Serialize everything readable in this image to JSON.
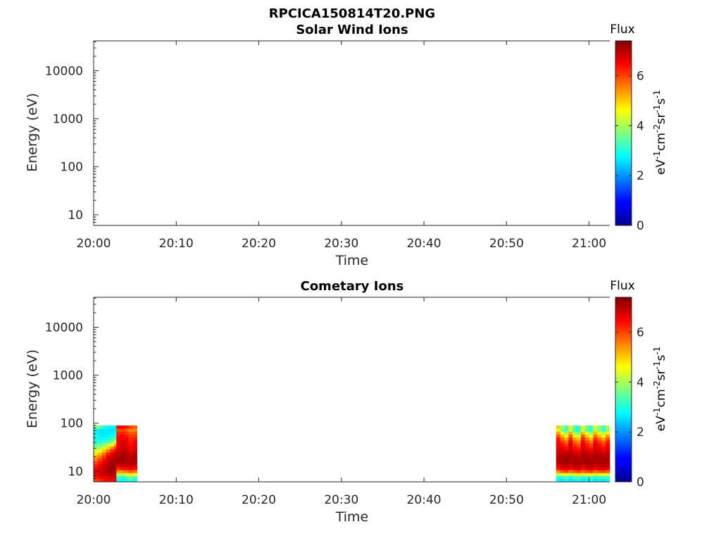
{
  "figure_title": "RPCICA150814T20.PNG",
  "chart_data": [
    {
      "type": "heatmap",
      "title": "Solar Wind Ions",
      "xlabel": "Time",
      "ylabel": "Energy (eV)",
      "x_ticks": [
        "20:00",
        "20:10",
        "20:20",
        "20:30",
        "20:40",
        "20:50",
        "21:00"
      ],
      "x_range_minutes": [
        0,
        62.5
      ],
      "y_scale": "log",
      "y_ticks": [
        {
          "value": 10,
          "label": "10"
        },
        {
          "value": 100,
          "label": "100"
        },
        {
          "value": 1000,
          "label": "1000"
        },
        {
          "value": 10000,
          "label": "10000"
        }
      ],
      "y_range": [
        6,
        42000
      ],
      "colorbar": {
        "title": "Flux",
        "label": "eV-1cm-2sr-1s-1",
        "range": [
          0,
          7.4
        ],
        "ticks": [
          0,
          2,
          4,
          6
        ],
        "colormap": "jet"
      },
      "cells": []
    },
    {
      "type": "heatmap",
      "title": "Cometary Ions",
      "xlabel": "Time",
      "ylabel": "Energy (eV)",
      "x_ticks": [
        "20:00",
        "20:10",
        "20:20",
        "20:30",
        "20:40",
        "20:50",
        "21:00"
      ],
      "x_range_minutes": [
        0,
        62.5
      ],
      "y_scale": "log",
      "y_ticks": [
        {
          "value": 10,
          "label": "10"
        },
        {
          "value": 100,
          "label": "100"
        },
        {
          "value": 1000,
          "label": "1000"
        },
        {
          "value": 10000,
          "label": "10000"
        }
      ],
      "y_range": [
        6,
        42000
      ],
      "colorbar": {
        "title": "Flux",
        "label": "eV-1cm-2sr-1s-1",
        "range": [
          0,
          7.4
        ],
        "ticks": [
          0,
          2,
          4,
          6
        ],
        "colormap": "jet"
      },
      "energy_bins": [
        6.5,
        7.5,
        8.6,
        9.9,
        11.4,
        13.2,
        15.2,
        17.5,
        20.2,
        23.3,
        26.8,
        30.9,
        35.6,
        41.0,
        47.3,
        54.5,
        62.8,
        72.4,
        83.4
      ],
      "blocks": [
        {
          "t_start_min": 0.0,
          "t_step_min": 0.5,
          "flux": [
            [
              6.0,
              6.2,
              6.4,
              6.5,
              6.5,
              6.6
            ],
            [
              6.3,
              6.5,
              6.6,
              6.7,
              6.8,
              6.8
            ],
            [
              6.5,
              6.7,
              6.8,
              7.0,
              7.0,
              6.9
            ],
            [
              6.6,
              6.8,
              7.0,
              7.1,
              7.1,
              7.0
            ],
            [
              6.5,
              6.7,
              6.9,
              7.1,
              7.2,
              7.1
            ],
            [
              6.3,
              6.6,
              6.9,
              7.0,
              7.2,
              7.2
            ],
            [
              6.0,
              6.3,
              6.7,
              6.9,
              7.1,
              7.1
            ],
            [
              5.6,
              6.0,
              6.4,
              6.8,
              7.0,
              7.1
            ],
            [
              5.2,
              5.6,
              6.1,
              6.6,
              6.9,
              7.0
            ],
            [
              4.8,
              5.1,
              5.6,
              6.2,
              6.6,
              6.9
            ],
            [
              4.3,
              4.6,
              5.0,
              5.6,
              6.2,
              6.6
            ],
            [
              3.8,
              4.0,
              4.4,
              4.9,
              5.5,
              6.1
            ],
            [
              3.4,
              3.5,
              3.7,
              4.1,
              4.6,
              5.3
            ],
            [
              3.1,
              3.1,
              3.2,
              3.4,
              3.8,
              4.4
            ],
            [
              2.9,
              2.8,
              2.9,
              3.0,
              3.2,
              3.5
            ],
            [
              2.9,
              2.7,
              2.6,
              2.7,
              2.8,
              3.0
            ],
            [
              2.8,
              2.6,
              2.6,
              2.6,
              2.7,
              2.8
            ],
            [
              2.7,
              2.6,
              2.6,
              2.6,
              2.6,
              2.6
            ],
            [
              3.8,
              3.6,
              3.0,
              2.8,
              2.7,
              2.6
            ]
          ]
        },
        {
          "t_start_min": 2.75,
          "t_step_min": 0.5,
          "flux": [
            [
              2.8,
              2.7,
              2.9,
              3.1,
              2.9
            ],
            [
              3.2,
              3.0,
              3.3,
              3.6,
              3.3
            ],
            [
              4.2,
              4.0,
              4.4,
              4.8,
              4.5
            ],
            [
              5.4,
              5.4,
              5.6,
              5.8,
              5.6
            ],
            [
              6.2,
              6.4,
              6.4,
              6.5,
              6.4
            ],
            [
              6.7,
              6.9,
              6.8,
              6.9,
              6.8
            ],
            [
              7.0,
              7.1,
              7.0,
              7.0,
              7.0
            ],
            [
              7.1,
              7.2,
              7.1,
              7.0,
              7.1
            ],
            [
              7.0,
              7.2,
              7.1,
              6.9,
              7.1
            ],
            [
              6.9,
              7.1,
              7.0,
              6.8,
              7.0
            ],
            [
              6.8,
              6.9,
              6.9,
              6.6,
              6.8
            ],
            [
              6.7,
              6.8,
              6.8,
              6.5,
              6.7
            ],
            [
              6.6,
              6.8,
              6.7,
              6.4,
              6.6
            ],
            [
              6.6,
              6.7,
              6.6,
              6.3,
              6.5
            ],
            [
              6.5,
              6.6,
              6.5,
              6.2,
              6.3
            ],
            [
              6.4,
              6.5,
              6.3,
              6.1,
              6.1
            ],
            [
              6.2,
              6.3,
              6.1,
              5.8,
              5.9
            ],
            [
              5.9,
              6.0,
              5.8,
              5.5,
              5.5
            ],
            [
              6.6,
              6.6,
              6.3,
              6.0,
              5.8
            ]
          ]
        },
        {
          "t_start_min": 56.0,
          "t_step_min": 0.5,
          "flux": [
            [
              2.7,
              2.6,
              2.8,
              2.6,
              2.7,
              2.8,
              2.6,
              2.7,
              2.8,
              2.6,
              2.7,
              2.6,
              2.8
            ],
            [
              3.0,
              3.1,
              3.3,
              3.0,
              3.2,
              3.4,
              3.1,
              3.2,
              3.3,
              3.0,
              3.1,
              3.2,
              3.1
            ],
            [
              4.0,
              4.3,
              4.6,
              4.1,
              4.4,
              4.8,
              4.2,
              4.5,
              4.7,
              4.2,
              4.4,
              4.5,
              4.3
            ],
            [
              5.4,
              5.8,
              6.0,
              5.6,
              5.9,
              6.1,
              5.7,
              6.0,
              6.1,
              5.7,
              5.9,
              6.0,
              5.8
            ],
            [
              6.3,
              6.6,
              6.7,
              6.5,
              6.7,
              6.8,
              6.5,
              6.7,
              6.8,
              6.5,
              6.7,
              6.7,
              6.6
            ],
            [
              6.7,
              6.9,
              7.0,
              6.8,
              7.0,
              7.0,
              6.8,
              7.0,
              7.0,
              6.8,
              6.9,
              7.0,
              6.9
            ],
            [
              6.9,
              7.1,
              7.1,
              7.0,
              7.1,
              7.1,
              7.0,
              7.1,
              7.1,
              7.0,
              7.1,
              7.1,
              7.0
            ],
            [
              7.0,
              7.1,
              7.2,
              7.1,
              7.1,
              7.0,
              7.1,
              7.2,
              7.1,
              7.1,
              7.1,
              7.1,
              7.1
            ],
            [
              7.0,
              7.1,
              7.1,
              7.1,
              7.0,
              6.9,
              7.1,
              7.1,
              7.0,
              7.1,
              7.1,
              7.0,
              7.0
            ],
            [
              6.9,
              7.0,
              6.9,
              7.0,
              6.8,
              6.7,
              7.0,
              6.9,
              6.8,
              7.0,
              6.9,
              6.8,
              6.9
            ],
            [
              6.8,
              6.8,
              6.7,
              6.9,
              6.6,
              6.5,
              6.9,
              6.7,
              6.6,
              6.9,
              6.8,
              6.6,
              6.8
            ],
            [
              6.7,
              6.6,
              6.4,
              6.8,
              6.4,
              6.2,
              6.8,
              6.5,
              6.3,
              6.8,
              6.6,
              6.4,
              6.7
            ],
            [
              6.6,
              6.4,
              6.1,
              6.7,
              6.1,
              5.9,
              6.7,
              6.3,
              6.0,
              6.7,
              6.4,
              6.1,
              6.5
            ],
            [
              6.5,
              6.1,
              5.7,
              6.5,
              5.8,
              5.5,
              6.5,
              6.0,
              5.6,
              6.5,
              6.1,
              5.8,
              6.3
            ],
            [
              6.3,
              5.7,
              5.2,
              6.2,
              5.3,
              5.0,
              6.2,
              5.6,
              5.1,
              6.2,
              5.7,
              5.3,
              5.9
            ],
            [
              5.9,
              5.2,
              4.6,
              5.8,
              4.7,
              4.3,
              5.8,
              5.0,
              4.5,
              5.7,
              5.1,
              4.7,
              5.4
            ],
            [
              5.3,
              4.5,
              3.9,
              5.2,
              4.0,
              3.6,
              5.1,
              4.3,
              3.8,
              5.1,
              4.4,
              4.0,
              4.7
            ],
            [
              4.5,
              3.7,
              3.2,
              4.3,
              3.3,
              3.0,
              4.3,
              3.5,
              3.1,
              4.2,
              3.6,
              3.2,
              3.8
            ],
            [
              5.0,
              4.0,
              3.3,
              4.8,
              3.4,
              3.0,
              4.6,
              3.6,
              3.2,
              4.5,
              3.8,
              3.3,
              4.1
            ]
          ]
        }
      ]
    }
  ]
}
